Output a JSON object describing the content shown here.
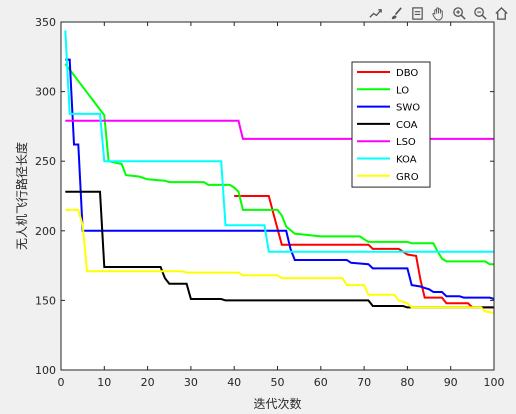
{
  "toolbar": {
    "icons": [
      "export-icon",
      "brush-icon",
      "data-tip-icon",
      "pan-hand-icon",
      "zoom-in-icon",
      "zoom-out-icon",
      "home-icon"
    ]
  },
  "chart_data": {
    "type": "line",
    "title": "",
    "xlabel": "迭代次数",
    "ylabel": "无人机飞行路径长度",
    "xlim": [
      0,
      100
    ],
    "ylim": [
      100,
      350
    ],
    "xticks": [
      0,
      10,
      20,
      30,
      40,
      50,
      60,
      70,
      80,
      90,
      100
    ],
    "yticks": [
      100,
      150,
      200,
      250,
      300,
      350
    ],
    "grid": false,
    "legend_position": "top-right",
    "series": [
      {
        "name": "DBO",
        "color": "#ff0000",
        "points": [
          [
            40,
            225
          ],
          [
            48,
            225
          ],
          [
            49,
            213
          ],
          [
            51,
            190
          ],
          [
            71,
            190
          ],
          [
            72,
            187
          ],
          [
            78,
            187
          ],
          [
            80,
            183
          ],
          [
            82,
            182
          ],
          [
            83,
            165
          ],
          [
            84,
            152
          ],
          [
            88,
            152
          ],
          [
            89,
            148
          ],
          [
            94,
            148
          ],
          [
            95,
            145
          ],
          [
            100,
            145
          ]
        ]
      },
      {
        "name": "LO",
        "color": "#00ff00",
        "points": [
          [
            1,
            320
          ],
          [
            10,
            283
          ],
          [
            11,
            250
          ],
          [
            14,
            248
          ],
          [
            15,
            240
          ],
          [
            18,
            239
          ],
          [
            20,
            237
          ],
          [
            24,
            236
          ],
          [
            25,
            235
          ],
          [
            33,
            235
          ],
          [
            34,
            233
          ],
          [
            39,
            233
          ],
          [
            40,
            231
          ],
          [
            41,
            228
          ],
          [
            42,
            215
          ],
          [
            50,
            215
          ],
          [
            51,
            211
          ],
          [
            52,
            203
          ],
          [
            54,
            198
          ],
          [
            57,
            197
          ],
          [
            60,
            196
          ],
          [
            69,
            196
          ],
          [
            70,
            194
          ],
          [
            71,
            192
          ],
          [
            80,
            192
          ],
          [
            81,
            191
          ],
          [
            86,
            191
          ],
          [
            87,
            185
          ],
          [
            88,
            180
          ],
          [
            89,
            178
          ],
          [
            98,
            178
          ],
          [
            99,
            176
          ],
          [
            100,
            176
          ]
        ]
      },
      {
        "name": "SWO",
        "color": "#0000ff",
        "points": [
          [
            1,
            323
          ],
          [
            2,
            323
          ],
          [
            3,
            262
          ],
          [
            4,
            262
          ],
          [
            5,
            200
          ],
          [
            52,
            200
          ],
          [
            53,
            187
          ],
          [
            54,
            179
          ],
          [
            66,
            179
          ],
          [
            67,
            177
          ],
          [
            71,
            176
          ],
          [
            72,
            173
          ],
          [
            80,
            173
          ],
          [
            81,
            161
          ],
          [
            83,
            160
          ],
          [
            84,
            159
          ],
          [
            85,
            158
          ],
          [
            86,
            156
          ],
          [
            88,
            156
          ],
          [
            89,
            153
          ],
          [
            92,
            153
          ],
          [
            93,
            152
          ],
          [
            99,
            152
          ],
          [
            100,
            151
          ]
        ]
      },
      {
        "name": "COA",
        "color": "#000000",
        "points": [
          [
            1,
            228
          ],
          [
            9,
            228
          ],
          [
            10,
            174
          ],
          [
            23,
            174
          ],
          [
            24,
            166
          ],
          [
            25,
            162
          ],
          [
            29,
            162
          ],
          [
            30,
            151
          ],
          [
            37,
            151
          ],
          [
            38,
            150
          ],
          [
            71,
            150
          ],
          [
            72,
            146
          ],
          [
            79,
            146
          ],
          [
            80,
            145
          ],
          [
            100,
            145
          ]
        ]
      },
      {
        "name": "LSO",
        "color": "#ff00ff",
        "points": [
          [
            1,
            279
          ],
          [
            41,
            279
          ],
          [
            42,
            266
          ],
          [
            100,
            266
          ]
        ]
      },
      {
        "name": "KOA",
        "color": "#00ffff",
        "points": [
          [
            1,
            344
          ],
          [
            2,
            284
          ],
          [
            9,
            284
          ],
          [
            10,
            250
          ],
          [
            37,
            250
          ],
          [
            38,
            204
          ],
          [
            47,
            204
          ],
          [
            48,
            185
          ],
          [
            100,
            185
          ]
        ]
      },
      {
        "name": "GRO",
        "color": "#ffff00",
        "points": [
          [
            1,
            215
          ],
          [
            4,
            215
          ],
          [
            5,
            204
          ],
          [
            6,
            171
          ],
          [
            28,
            171
          ],
          [
            29,
            170
          ],
          [
            41,
            170
          ],
          [
            42,
            168
          ],
          [
            50,
            168
          ],
          [
            51,
            166
          ],
          [
            65,
            166
          ],
          [
            66,
            161
          ],
          [
            70,
            161
          ],
          [
            71,
            154
          ],
          [
            77,
            154
          ],
          [
            78,
            150
          ],
          [
            80,
            148
          ],
          [
            81,
            145
          ],
          [
            97,
            145
          ],
          [
            98,
            142
          ],
          [
            100,
            141
          ]
        ]
      }
    ]
  }
}
